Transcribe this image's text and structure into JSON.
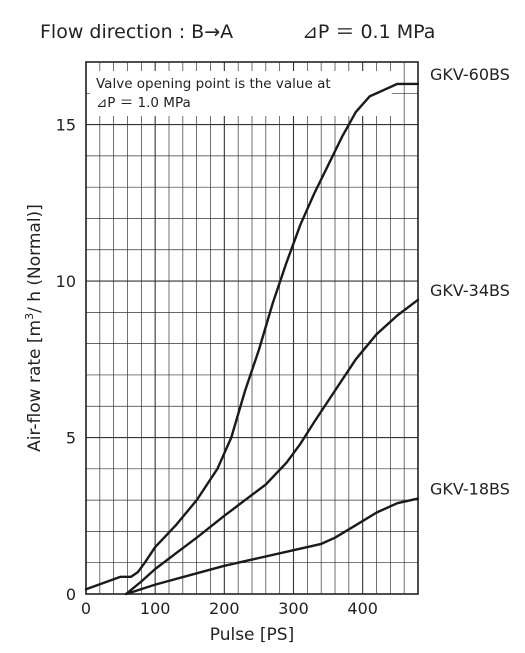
{
  "chart_data": {
    "type": "line",
    "title": "Flow direction : B→A",
    "subtitle": "⊿P ＝ 0.1 MPa",
    "xlabel": "Pulse [PS]",
    "ylabel_parts": [
      "Air-flow rate [m",
      "3",
      "/ h (Normal)]"
    ],
    "note_lines": [
      "Valve opening point is the value at",
      "⊿P ＝ 1.0 MPa"
    ],
    "xlim": [
      0,
      480
    ],
    "ylim": [
      0,
      17
    ],
    "x_ticks": [
      0,
      100,
      200,
      300,
      400
    ],
    "y_ticks": [
      0,
      5,
      10,
      15
    ],
    "x_minor_step": 20,
    "y_minor_step": 1,
    "grid": true,
    "series": [
      {
        "name": "GKV-60BS",
        "points": [
          [
            0,
            0.15
          ],
          [
            25,
            0.35
          ],
          [
            50,
            0.55
          ],
          [
            65,
            0.55
          ],
          [
            75,
            0.7
          ],
          [
            85,
            1.0
          ],
          [
            100,
            1.5
          ],
          [
            130,
            2.2
          ],
          [
            160,
            3.0
          ],
          [
            190,
            4.0
          ],
          [
            210,
            5.0
          ],
          [
            230,
            6.5
          ],
          [
            250,
            7.8
          ],
          [
            270,
            9.3
          ],
          [
            290,
            10.6
          ],
          [
            310,
            11.8
          ],
          [
            330,
            12.8
          ],
          [
            350,
            13.7
          ],
          [
            370,
            14.6
          ],
          [
            390,
            15.4
          ],
          [
            410,
            15.9
          ],
          [
            430,
            16.1
          ],
          [
            450,
            16.3
          ],
          [
            480,
            16.3
          ]
        ]
      },
      {
        "name": "GKV-34BS",
        "points": [
          [
            58,
            0
          ],
          [
            80,
            0.4
          ],
          [
            100,
            0.8
          ],
          [
            130,
            1.3
          ],
          [
            160,
            1.8
          ],
          [
            200,
            2.5
          ],
          [
            230,
            3.0
          ],
          [
            260,
            3.5
          ],
          [
            290,
            4.2
          ],
          [
            310,
            4.8
          ],
          [
            330,
            5.5
          ],
          [
            360,
            6.5
          ],
          [
            390,
            7.5
          ],
          [
            420,
            8.3
          ],
          [
            450,
            8.9
          ],
          [
            480,
            9.4
          ]
        ]
      },
      {
        "name": "GKV-18BS",
        "points": [
          [
            58,
            0
          ],
          [
            100,
            0.3
          ],
          [
            150,
            0.6
          ],
          [
            200,
            0.9
          ],
          [
            250,
            1.15
          ],
          [
            300,
            1.4
          ],
          [
            340,
            1.6
          ],
          [
            360,
            1.8
          ],
          [
            390,
            2.2
          ],
          [
            420,
            2.6
          ],
          [
            450,
            2.9
          ],
          [
            480,
            3.05
          ]
        ]
      }
    ]
  }
}
